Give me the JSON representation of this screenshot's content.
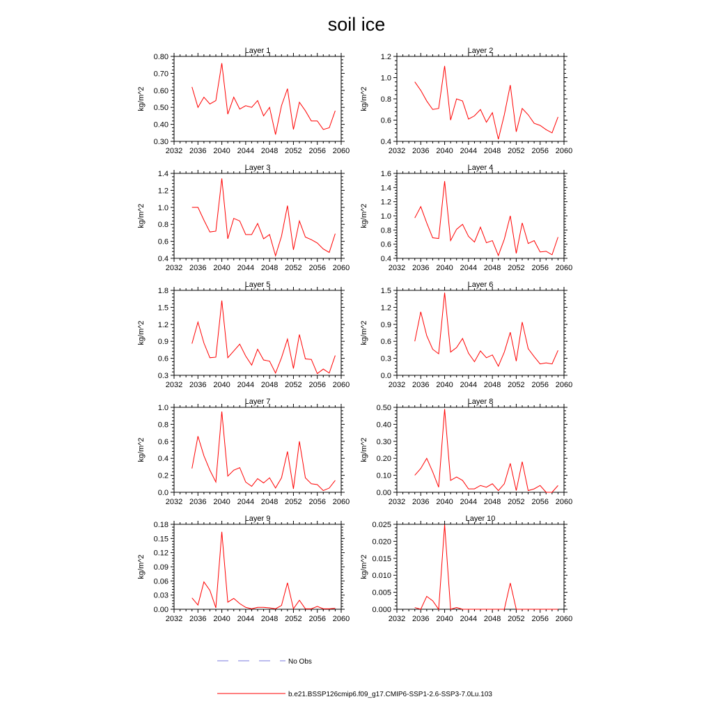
{
  "title": "soil ice",
  "colors": {
    "model": "#ff0000",
    "obs": "#7a7adf",
    "axis": "#000000"
  },
  "x_axis": {
    "min": 2032,
    "max": 2060,
    "ticks": [
      2032,
      2036,
      2040,
      2044,
      2048,
      2052,
      2056,
      2060
    ]
  },
  "years": [
    2035,
    2036,
    2037,
    2038,
    2039,
    2040,
    2041,
    2042,
    2043,
    2044,
    2045,
    2046,
    2047,
    2048,
    2049,
    2050,
    2051,
    2052,
    2053,
    2054,
    2055,
    2056,
    2057,
    2058,
    2059
  ],
  "legend": {
    "obs_label": "No Obs",
    "model_label": "b.e21.BSSP126cmip6.f09_g17.CMIP6-SSP1-2.6-SSP3-7.0Lu.103"
  },
  "chart_data": [
    {
      "type": "line",
      "title": "Layer 1",
      "ylabel": "kg/m^2",
      "ylim": [
        0.3,
        0.8
      ],
      "yticks": [
        0.3,
        0.4,
        0.5,
        0.6,
        0.7,
        0.8
      ],
      "ytick_labels": [
        "0.30",
        "0.40",
        "0.50",
        "0.60",
        "0.70",
        "0.80"
      ],
      "values": [
        0.62,
        0.5,
        0.56,
        0.52,
        0.54,
        0.76,
        0.46,
        0.56,
        0.49,
        0.51,
        0.5,
        0.54,
        0.45,
        0.5,
        0.34,
        0.51,
        0.61,
        0.37,
        0.53,
        0.48,
        0.42,
        0.42,
        0.37,
        0.38,
        0.48
      ]
    },
    {
      "type": "line",
      "title": "Layer 2",
      "ylabel": "kg/m^2",
      "ylim": [
        0.4,
        1.2
      ],
      "yticks": [
        0.4,
        0.6,
        0.8,
        1.0,
        1.2
      ],
      "ytick_labels": [
        "0.4",
        "0.6",
        "0.8",
        "1.0",
        "1.2"
      ],
      "values": [
        0.96,
        0.88,
        0.78,
        0.7,
        0.71,
        1.11,
        0.6,
        0.8,
        0.78,
        0.61,
        0.64,
        0.7,
        0.58,
        0.67,
        0.42,
        0.65,
        0.93,
        0.49,
        0.71,
        0.65,
        0.57,
        0.55,
        0.51,
        0.48,
        0.63
      ]
    },
    {
      "type": "line",
      "title": "Layer 3",
      "ylabel": "kg/m^2",
      "ylim": [
        0.4,
        1.4
      ],
      "yticks": [
        0.4,
        0.6,
        0.8,
        1.0,
        1.2,
        1.4
      ],
      "ytick_labels": [
        "0.4",
        "0.6",
        "0.8",
        "1.0",
        "1.2",
        "1.4"
      ],
      "values": [
        1.0,
        1.0,
        0.85,
        0.71,
        0.72,
        1.34,
        0.63,
        0.87,
        0.84,
        0.68,
        0.68,
        0.81,
        0.63,
        0.68,
        0.43,
        0.66,
        1.02,
        0.5,
        0.84,
        0.65,
        0.62,
        0.58,
        0.51,
        0.47,
        0.69
      ]
    },
    {
      "type": "line",
      "title": "Layer 4",
      "ylabel": "kg/m^2",
      "ylim": [
        0.4,
        1.6
      ],
      "yticks": [
        0.4,
        0.6,
        0.8,
        1.0,
        1.2,
        1.4,
        1.6
      ],
      "ytick_labels": [
        "0.4",
        "0.6",
        "0.8",
        "1.0",
        "1.2",
        "1.4",
        "1.6"
      ],
      "values": [
        0.97,
        1.13,
        0.9,
        0.69,
        0.68,
        1.49,
        0.65,
        0.81,
        0.88,
        0.71,
        0.63,
        0.84,
        0.62,
        0.65,
        0.44,
        0.67,
        1.0,
        0.47,
        0.9,
        0.61,
        0.65,
        0.49,
        0.5,
        0.45,
        0.7
      ]
    },
    {
      "type": "line",
      "title": "Layer 5",
      "ylabel": "kg/m^2",
      "ylim": [
        0.3,
        1.8
      ],
      "yticks": [
        0.3,
        0.6,
        0.9,
        1.2,
        1.5,
        1.8
      ],
      "ytick_labels": [
        "0.3",
        "0.6",
        "0.9",
        "1.2",
        "1.5",
        "1.8"
      ],
      "values": [
        0.86,
        1.24,
        0.87,
        0.61,
        0.62,
        1.62,
        0.61,
        0.73,
        0.85,
        0.64,
        0.48,
        0.76,
        0.57,
        0.55,
        0.34,
        0.61,
        0.94,
        0.42,
        1.02,
        0.59,
        0.58,
        0.33,
        0.41,
        0.34,
        0.65
      ]
    },
    {
      "type": "line",
      "title": "Layer 6",
      "ylabel": "kg/m^2",
      "ylim": [
        0.0,
        1.5
      ],
      "yticks": [
        0.0,
        0.3,
        0.6,
        0.9,
        1.2,
        1.5
      ],
      "ytick_labels": [
        "0.0",
        "0.3",
        "0.6",
        "0.9",
        "1.2",
        "1.5"
      ],
      "values": [
        0.6,
        1.12,
        0.7,
        0.46,
        0.38,
        1.46,
        0.41,
        0.49,
        0.65,
        0.39,
        0.24,
        0.43,
        0.31,
        0.36,
        0.16,
        0.41,
        0.76,
        0.25,
        0.94,
        0.47,
        0.33,
        0.2,
        0.22,
        0.2,
        0.44
      ]
    },
    {
      "type": "line",
      "title": "Layer 7",
      "ylabel": "kg/m^2",
      "ylim": [
        0.0,
        1.0
      ],
      "yticks": [
        0.0,
        0.2,
        0.4,
        0.6,
        0.8,
        1.0
      ],
      "ytick_labels": [
        "0.0",
        "0.2",
        "0.4",
        "0.6",
        "0.8",
        "1.0"
      ],
      "values": [
        0.28,
        0.66,
        0.43,
        0.26,
        0.12,
        0.95,
        0.19,
        0.26,
        0.29,
        0.12,
        0.07,
        0.16,
        0.11,
        0.17,
        0.05,
        0.17,
        0.48,
        0.04,
        0.6,
        0.17,
        0.1,
        0.09,
        0.02,
        0.05,
        0.14
      ]
    },
    {
      "type": "line",
      "title": "Layer 8",
      "ylabel": "kg/m^2",
      "ylim": [
        0.0,
        0.5
      ],
      "yticks": [
        0.0,
        0.1,
        0.2,
        0.3,
        0.4,
        0.5
      ],
      "ytick_labels": [
        "0.00",
        "0.10",
        "0.20",
        "0.30",
        "0.40",
        "0.50"
      ],
      "values": [
        0.1,
        0.14,
        0.2,
        0.12,
        0.03,
        0.49,
        0.07,
        0.09,
        0.07,
        0.02,
        0.02,
        0.04,
        0.03,
        0.05,
        0.01,
        0.05,
        0.17,
        0.01,
        0.18,
        0.01,
        0.02,
        0.04,
        0.0,
        0.0,
        0.04
      ]
    },
    {
      "type": "line",
      "title": "Layer 9",
      "ylabel": "kg/m^2",
      "ylim": [
        0.0,
        0.18
      ],
      "yticks": [
        0.0,
        0.03,
        0.06,
        0.09,
        0.12,
        0.15,
        0.18
      ],
      "ytick_labels": [
        "0.00",
        "0.03",
        "0.06",
        "0.09",
        "0.12",
        "0.15",
        "0.18"
      ],
      "values": [
        0.024,
        0.009,
        0.058,
        0.04,
        0.003,
        0.164,
        0.015,
        0.023,
        0.012,
        0.004,
        0.001,
        0.004,
        0.004,
        0.003,
        0.001,
        0.008,
        0.056,
        0.001,
        0.019,
        0.001,
        0.001,
        0.006,
        0.001,
        0.001,
        0.002
      ]
    },
    {
      "type": "line",
      "title": "Layer 10",
      "ylabel": "kg/m^2",
      "ylim": [
        0.0,
        0.025
      ],
      "yticks": [
        0.0,
        0.005,
        0.01,
        0.015,
        0.02,
        0.025
      ],
      "ytick_labels": [
        "0.000",
        "0.005",
        "0.010",
        "0.015",
        "0.020",
        "0.025"
      ],
      "values": [
        0.0005,
        0.0,
        0.0038,
        0.0025,
        0.0,
        0.0249,
        0.0,
        0.0005,
        0.0,
        0.0,
        0.0,
        0.0,
        0.0,
        0.0,
        0.0,
        0.0,
        0.0077,
        0.0,
        0.0,
        0.0,
        0.0,
        0.0,
        0.0,
        0.0,
        0.0
      ]
    }
  ]
}
